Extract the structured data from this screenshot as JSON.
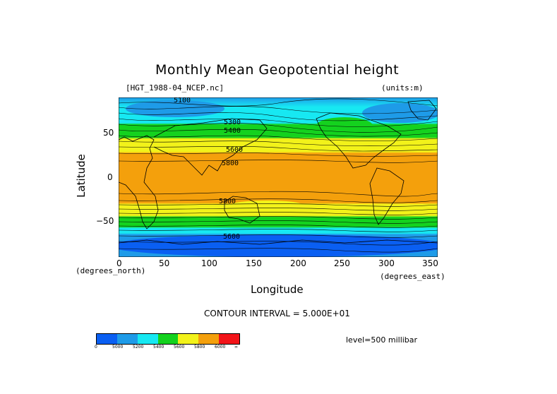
{
  "title": "Monthly Mean Geopotential height",
  "file_label": "[HGT_1988-04_NCEP.nc]",
  "units_label": "(units:m)",
  "x_axis": {
    "label": "Longitude",
    "units": "(degrees_east)",
    "ticks": [
      "0",
      "50",
      "100",
      "150",
      "200",
      "250",
      "300",
      "350"
    ]
  },
  "y_axis": {
    "label": "Latitude",
    "units": "(degrees_north)",
    "ticks": [
      "50",
      "0",
      "−50"
    ]
  },
  "contour_interval": "CONTOUR INTERVAL = 5.000E+01",
  "level": "level=500 millibar",
  "contour_labels": [
    "5100",
    "5300",
    "5400",
    "5600",
    "5800",
    "5800",
    "5600"
  ],
  "colorbar": {
    "colors": [
      "#0a5ff2",
      "#1e9be8",
      "#17e8f2",
      "#14d21e",
      "#f2f21a",
      "#f4a00c",
      "#f21419"
    ],
    "labels": [
      "0",
      "5000",
      "5200",
      "5400",
      "5600",
      "5800",
      "6000",
      "∞"
    ]
  },
  "chart_data": {
    "type": "heatmap",
    "title": "Monthly Mean Geopotential height",
    "xlabel": "Longitude",
    "ylabel": "Latitude",
    "xlim": [
      0,
      360
    ],
    "ylim": [
      -90,
      90
    ],
    "variable": "geopotential height (m) at 500 millibar",
    "levels": [
      0,
      5000,
      5200,
      5400,
      5600,
      5800,
      6000
    ],
    "latitude_bands": [
      {
        "lat": 80,
        "range": "5000-5200"
      },
      {
        "lat": 60,
        "range": "5200-5400"
      },
      {
        "lat": 45,
        "range": "5400-5600"
      },
      {
        "lat": 30,
        "range": "5600-5800"
      },
      {
        "lat": 0,
        "range": "5800-6000"
      },
      {
        "lat": -30,
        "range": "5800-6000"
      },
      {
        "lat": -45,
        "range": "5400-5600"
      },
      {
        "lat": -55,
        "range": "5200-5400"
      },
      {
        "lat": -75,
        "range": "5000-5200"
      }
    ]
  }
}
